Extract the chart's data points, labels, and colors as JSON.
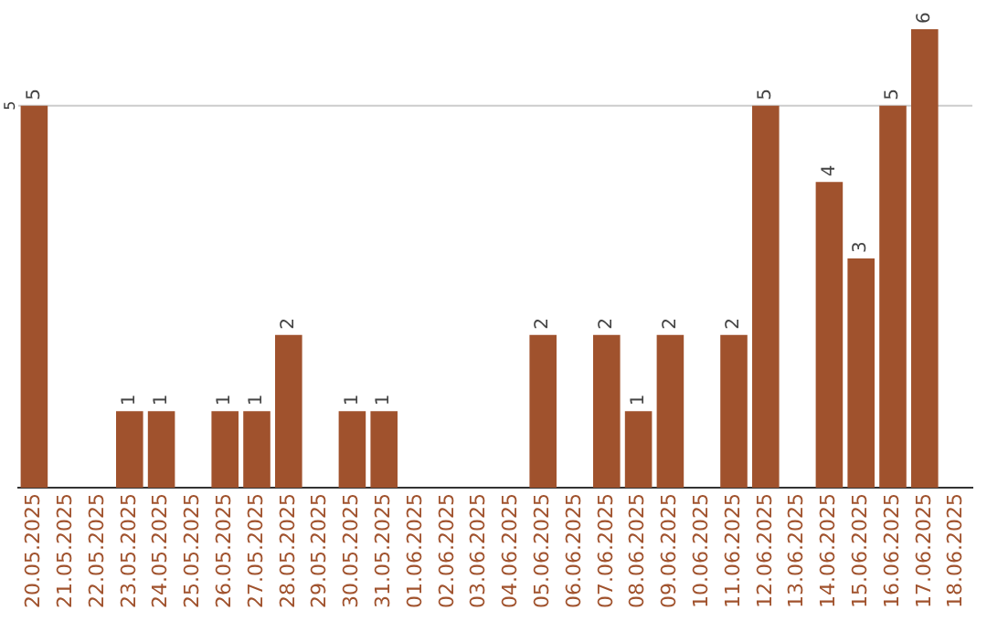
{
  "chart_data": {
    "type": "bar",
    "categories": [
      "20.05.2025",
      "21.05.2025",
      "22.05.2025",
      "23.05.2025",
      "24.05.2025",
      "25.05.2025",
      "26.05.2025",
      "27.05.2025",
      "28.05.2025",
      "29.05.2025",
      "30.05.2025",
      "31.05.2025",
      "01.06.2025",
      "02.06.2025",
      "03.06.2025",
      "04.06.2025",
      "05.06.2025",
      "06.06.2025",
      "07.06.2025",
      "08.06.2025",
      "09.06.2025",
      "10.06.2025",
      "11.06.2025",
      "12.06.2025",
      "13.06.2025",
      "14.06.2025",
      "15.06.2025",
      "16.06.2025",
      "17.06.2025",
      "18.06.2025"
    ],
    "values": [
      5,
      null,
      null,
      1,
      1,
      null,
      1,
      1,
      2,
      null,
      1,
      1,
      null,
      null,
      null,
      null,
      2,
      null,
      2,
      1,
      2,
      null,
      2,
      5,
      null,
      4,
      3,
      5,
      6,
      null
    ],
    "color": "#a0522d",
    "ref_lines": [
      {
        "axis": "y",
        "value": 5,
        "label": "5",
        "color": "#cccccc"
      }
    ],
    "data_labels": true,
    "legend": false
  }
}
